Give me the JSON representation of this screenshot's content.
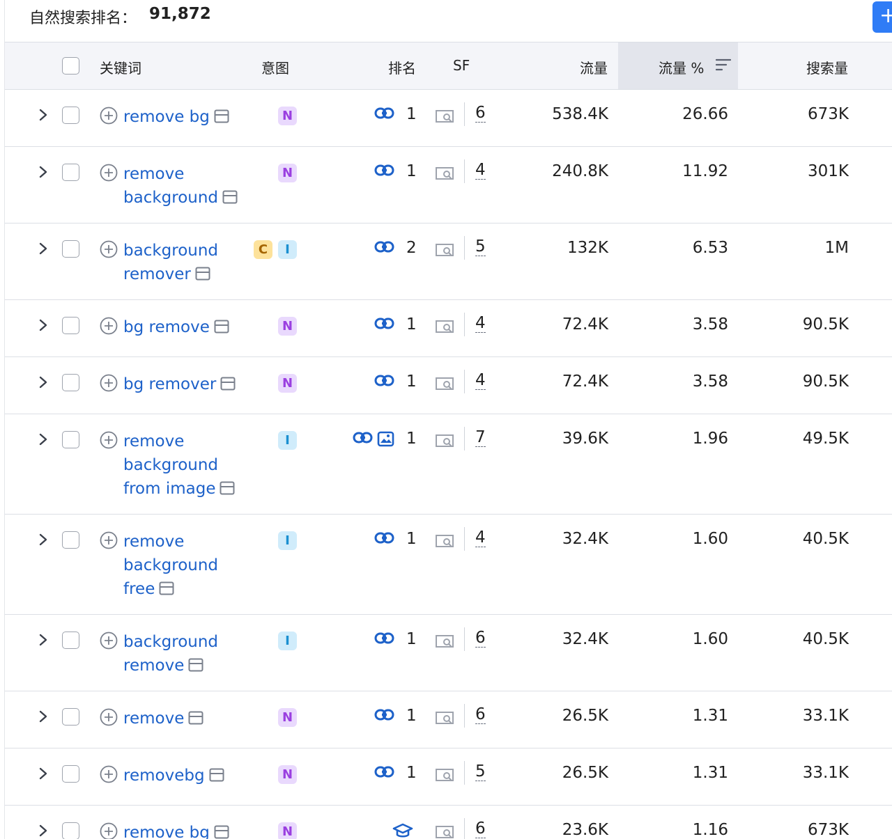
{
  "header": {
    "label": "自然搜索排名：",
    "count": "91,872",
    "add_button": "+"
  },
  "columns": {
    "keyword": "关键词",
    "intent": "意图",
    "rank": "排名",
    "sf": "SF",
    "traffic": "流量",
    "traffic_pct": "流量 %",
    "volume": "搜索量"
  },
  "rows": [
    {
      "keyword": "remove bg",
      "intents": [
        "N"
      ],
      "rank_icons": [
        "link"
      ],
      "rank": "1",
      "sf": "6",
      "traffic": "538.4K",
      "traffic_pct": "26.66",
      "volume": "673K"
    },
    {
      "keyword": "remove background",
      "intents": [
        "N"
      ],
      "rank_icons": [
        "link"
      ],
      "rank": "1",
      "sf": "4",
      "traffic": "240.8K",
      "traffic_pct": "11.92",
      "volume": "301K"
    },
    {
      "keyword": "background remover",
      "intents": [
        "C",
        "I"
      ],
      "rank_icons": [
        "link"
      ],
      "rank": "2",
      "sf": "5",
      "traffic": "132K",
      "traffic_pct": "6.53",
      "volume": "1M"
    },
    {
      "keyword": "bg remove",
      "intents": [
        "N"
      ],
      "rank_icons": [
        "link"
      ],
      "rank": "1",
      "sf": "4",
      "traffic": "72.4K",
      "traffic_pct": "3.58",
      "volume": "90.5K"
    },
    {
      "keyword": "bg remover",
      "intents": [
        "N"
      ],
      "rank_icons": [
        "link"
      ],
      "rank": "1",
      "sf": "4",
      "traffic": "72.4K",
      "traffic_pct": "3.58",
      "volume": "90.5K"
    },
    {
      "keyword": "remove background from image",
      "intents": [
        "I"
      ],
      "rank_icons": [
        "link",
        "image"
      ],
      "rank": "1",
      "sf": "7",
      "traffic": "39.6K",
      "traffic_pct": "1.96",
      "volume": "49.5K"
    },
    {
      "keyword": "remove background free",
      "intents": [
        "I"
      ],
      "rank_icons": [
        "link"
      ],
      "rank": "1",
      "sf": "4",
      "traffic": "32.4K",
      "traffic_pct": "1.60",
      "volume": "40.5K"
    },
    {
      "keyword": "background remove",
      "intents": [
        "I"
      ],
      "rank_icons": [
        "link"
      ],
      "rank": "1",
      "sf": "6",
      "traffic": "32.4K",
      "traffic_pct": "1.60",
      "volume": "40.5K"
    },
    {
      "keyword": "remove",
      "intents": [
        "N"
      ],
      "rank_icons": [
        "link"
      ],
      "rank": "1",
      "sf": "6",
      "traffic": "26.5K",
      "traffic_pct": "1.31",
      "volume": "33.1K"
    },
    {
      "keyword": "removebg",
      "intents": [
        "N"
      ],
      "rank_icons": [
        "link"
      ],
      "rank": "1",
      "sf": "5",
      "traffic": "26.5K",
      "traffic_pct": "1.31",
      "volume": "33.1K"
    },
    {
      "keyword": "remove bg",
      "intents": [
        "N"
      ],
      "rank_icons": [
        "graduation-cap"
      ],
      "rank": "",
      "sf": "6",
      "traffic": "23.6K",
      "traffic_pct": "1.16",
      "volume": "673K"
    }
  ]
}
